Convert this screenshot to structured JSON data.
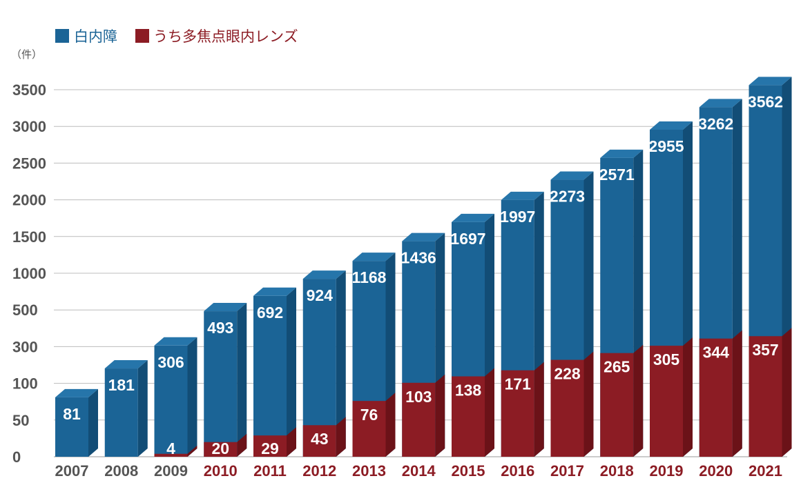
{
  "chart_data": {
    "type": "bar",
    "stacked": true,
    "three_d": true,
    "scale": "non-uniform axis (y tick labels 0, 50, 100, 300, 500, 1000–3500 evenly spaced)",
    "unit_label": "（件）",
    "categories": [
      "2007",
      "2008",
      "2009",
      "2010",
      "2011",
      "2012",
      "2013",
      "2014",
      "2015",
      "2016",
      "2017",
      "2018",
      "2019",
      "2020",
      "2021"
    ],
    "yticks": [
      "0",
      "50",
      "100",
      "300",
      "500",
      "1000",
      "1500",
      "2000",
      "2500",
      "3000",
      "3500"
    ],
    "grid": true,
    "legend_position": "top-left",
    "series": [
      {
        "name": "白内障",
        "color": "#1b6496",
        "values": [
          81,
          181,
          306,
          493,
          692,
          924,
          1168,
          1436,
          1697,
          1997,
          2273,
          2571,
          2955,
          3262,
          3562
        ]
      },
      {
        "name": "うち多焦点眼内レンズ",
        "color": "#8c1c24",
        "values": [
          null,
          null,
          4,
          20,
          29,
          43,
          76,
          103,
          138,
          171,
          228,
          265,
          305,
          344,
          357
        ]
      }
    ],
    "xtick_colors": [
      "#555555",
      "#555555",
      "#555555",
      "#8c1c24",
      "#8c1c24",
      "#8c1c24",
      "#8c1c24",
      "#8c1c24",
      "#8c1c24",
      "#8c1c24",
      "#8c1c24",
      "#8c1c24",
      "#8c1c24",
      "#8c1c24",
      "#8c1c24"
    ]
  }
}
